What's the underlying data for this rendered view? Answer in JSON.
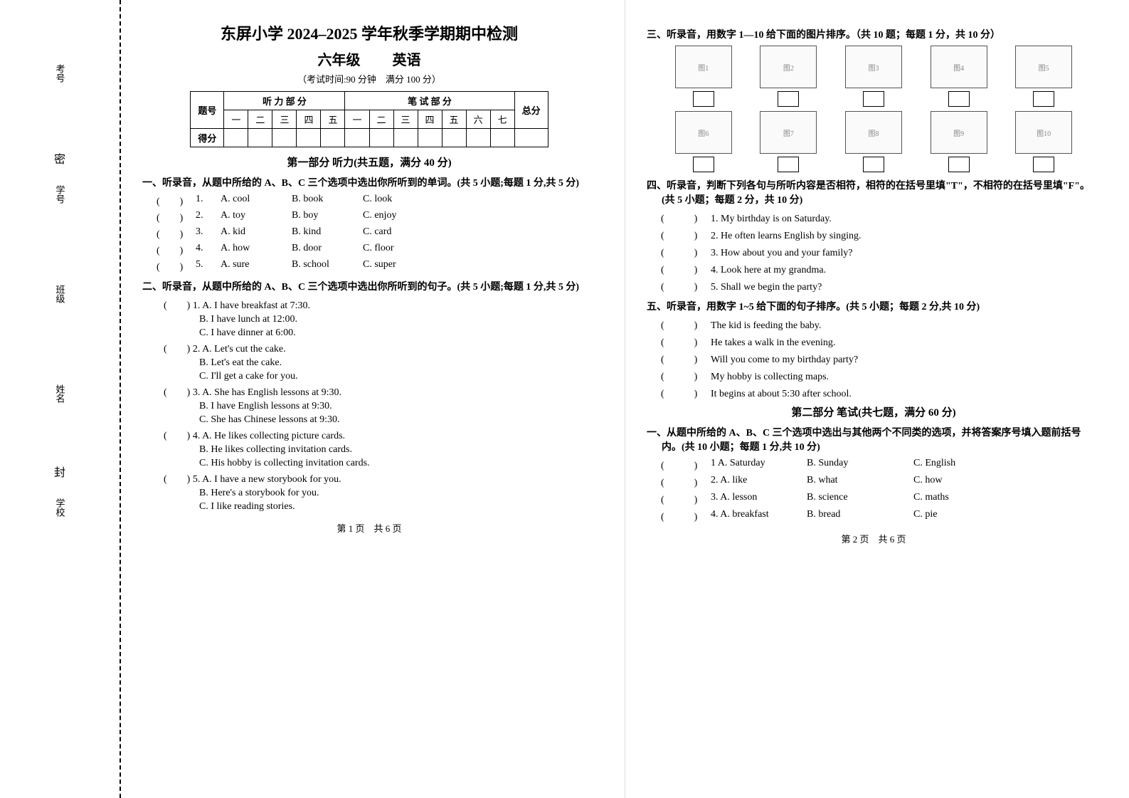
{
  "binding": {
    "labels": [
      "考号",
      "学号",
      "班级",
      "姓名",
      "学校"
    ],
    "seal_marks": [
      "密",
      "封"
    ]
  },
  "header": {
    "title": "东屏小学 2024–2025 学年秋季学期期中检测",
    "grade": "六年级",
    "subject": "英语",
    "exam_info": "（考试时间:90 分钟　满分 100 分）"
  },
  "score_table": {
    "row1": [
      "题号",
      "听 力 部 分",
      "笔 试 部 分",
      "总分"
    ],
    "listen_cols": [
      "一",
      "二",
      "三",
      "四",
      "五"
    ],
    "write_cols": [
      "一",
      "二",
      "三",
      "四",
      "五",
      "六",
      "七"
    ],
    "row_score": "得分"
  },
  "part1_title": "第一部分 听力(共五题，满分 40 分)",
  "s1": {
    "head": "一、听录音，从题中所给的 A、B、C 三个选项中选出你所听到的单词。(共 5 小题;每题 1 分,共 5 分)",
    "items": [
      {
        "n": "1.",
        "a": "A. cool",
        "b": "B. book",
        "c": "C. look"
      },
      {
        "n": "2.",
        "a": "A. toy",
        "b": "B. boy",
        "c": "C. enjoy"
      },
      {
        "n": "3.",
        "a": "A. kid",
        "b": "B. kind",
        "c": "C. card"
      },
      {
        "n": "4.",
        "a": "A. how",
        "b": "B. door",
        "c": "C. floor"
      },
      {
        "n": "5.",
        "a": "A. sure",
        "b": "B. school",
        "c": "C. super"
      }
    ]
  },
  "s2": {
    "head": "二、听录音，从题中所给的 A、B、C 三个选项中选出你所听到的句子。(共 5 小题;每题 1 分,共 5 分)",
    "items": [
      {
        "n": "1.",
        "a": "A. I have breakfast at 7:30.",
        "b": "B. I have lunch at 12:00.",
        "c": "C. I have dinner at 6:00."
      },
      {
        "n": "2.",
        "a": "A. Let's cut the cake.",
        "b": "B. Let's eat the cake.",
        "c": "C. I'll get a cake for you."
      },
      {
        "n": "3.",
        "a": "A. She has English lessons at 9:30.",
        "b": "B. I have English lessons at 9:30.",
        "c": "C. She has Chinese lessons at 9:30."
      },
      {
        "n": "4.",
        "a": "A. He likes collecting picture cards.",
        "b": "B. He likes collecting invitation cards.",
        "c": "C. His hobby is collecting invitation cards."
      },
      {
        "n": "5.",
        "a": "A. I have a new storybook for you.",
        "b": "B. Here's a storybook for you.",
        "c": "C. I like reading stories."
      }
    ]
  },
  "footer_left": "第 1 页　共 6 页",
  "s3": {
    "head": "三、听录音，用数字 1—10 给下面的图片排序。（共 10 题；每题 1 分，共 10 分）",
    "placeholders": [
      "图1",
      "图2",
      "图3",
      "图4",
      "图5",
      "图6",
      "图7",
      "图8",
      "图9",
      "图10"
    ]
  },
  "s4": {
    "head": "四、听录音，判断下列各句与所听内容是否相符，相符的在括号里填\"T\"，不相符的在括号里填\"F\"。(共 5 小题；每题 2 分，共 10 分)",
    "items": [
      "1. My birthday is on Saturday.",
      "2. He often learns English by singing.",
      "3. How about you and your family?",
      "4. Look here at my grandma.",
      "5. Shall we begin the party?"
    ]
  },
  "s5": {
    "head": "五、听录音，用数字 1~5 给下面的句子排序。(共 5 小题；每题 2 分,共 10 分)",
    "items": [
      "The kid is feeding the baby.",
      "He takes a walk in the evening.",
      "Will you come to my birthday party?",
      "My hobby is collecting maps.",
      "It begins at about 5:30 after school."
    ]
  },
  "part2_title": "第二部分 笔试(共七题，满分 60 分)",
  "w1": {
    "head": "一、从题中所给的 A、B、C 三个选项中选出与其他两个不同类的选项，并将答案序号填入题前括号内。(共 10 小题；每题 1 分,共 10 分)",
    "items": [
      {
        "n": "1",
        "a": "A. Saturday",
        "b": "B. Sunday",
        "c": "C. English"
      },
      {
        "n": "2.",
        "a": "A. like",
        "b": "B. what",
        "c": "C. how"
      },
      {
        "n": "3.",
        "a": "A. lesson",
        "b": "B. science",
        "c": "C. maths"
      },
      {
        "n": "4.",
        "a": "A. breakfast",
        "b": "B. bread",
        "c": "C. pie"
      }
    ]
  },
  "footer_right": "第 2 页　共 6 页"
}
